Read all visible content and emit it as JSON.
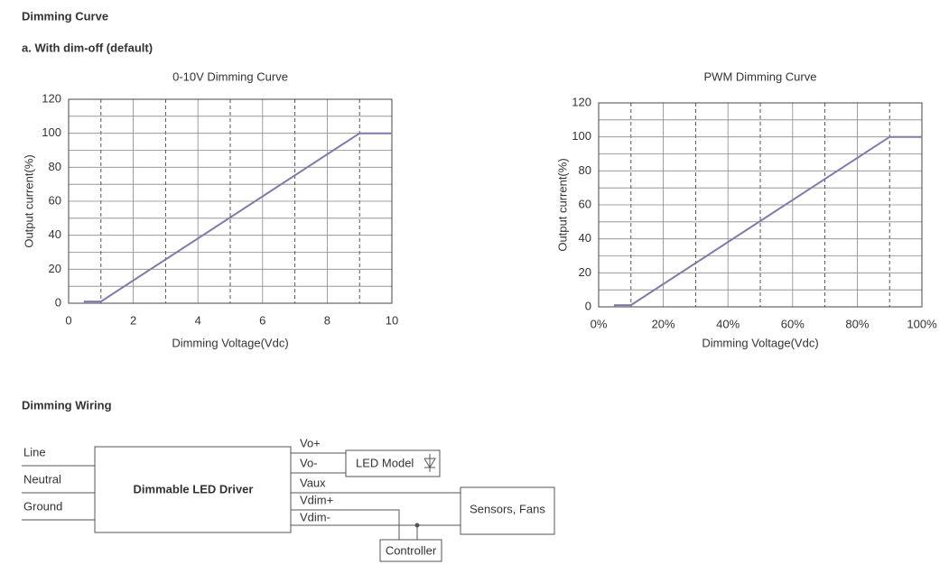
{
  "headings": {
    "section": "Dimming Curve",
    "subsection": "a. With dim-off (default)",
    "wiring": "Dimming Wiring"
  },
  "chart_data": [
    {
      "type": "line",
      "title": "0-10V Dimming Curve",
      "x_label": "Dimming Voltage(Vdc)",
      "y_label": "Output current(%)",
      "x": [
        0.5,
        0.5,
        1,
        9,
        10
      ],
      "values": [
        0,
        1,
        1,
        100,
        100
      ],
      "color": "#8478aa",
      "xlim": [
        0,
        10
      ],
      "xticks": [
        0,
        2,
        4,
        6,
        8,
        10
      ],
      "ylim": [
        0,
        120
      ],
      "yticks": [
        0,
        20,
        40,
        60,
        80,
        100,
        120
      ],
      "grid": true
    },
    {
      "type": "line",
      "title": "PWM Dimming Curve",
      "x_label": "Dimming Voltage(Vdc)",
      "y_label": "Output current(%)",
      "x": [
        5,
        5,
        10,
        90,
        100
      ],
      "values": [
        0,
        1,
        1,
        100,
        100
      ],
      "color": "#8478aa",
      "xlim": [
        0,
        100
      ],
      "xticks": [
        {
          "value": 0,
          "label": "0%"
        },
        {
          "value": 20,
          "label": "20%"
        },
        {
          "value": 40,
          "label": "40%"
        },
        {
          "value": 60,
          "label": "60%"
        },
        {
          "value": 80,
          "label": "80%"
        },
        {
          "value": 100,
          "label": "100%"
        }
      ],
      "ylim": [
        0,
        120
      ],
      "yticks": [
        0,
        20,
        40,
        60,
        80,
        100,
        120
      ],
      "grid": true
    }
  ],
  "wiring": {
    "inputs": [
      "Line",
      "Neutral",
      "Ground"
    ],
    "driver": "Dimmable LED Driver",
    "outputs": [
      "Vo+",
      "Vo-",
      "Vaux",
      "Vdim+",
      "Vdim-"
    ],
    "led": "LED Model",
    "sensors": "Sensors, Fans",
    "controller": "Controller"
  }
}
